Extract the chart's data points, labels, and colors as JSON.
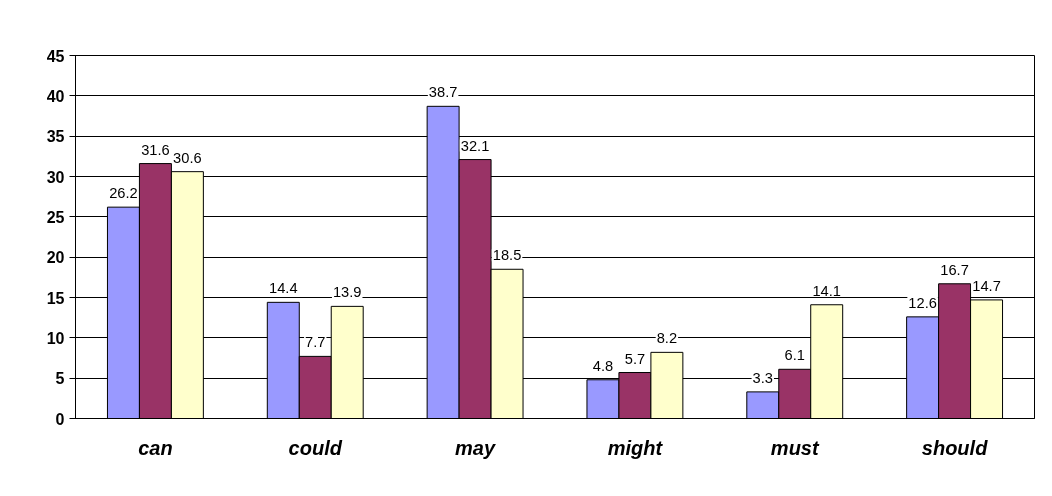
{
  "chart_data": {
    "type": "bar",
    "categories": [
      "can",
      "could",
      "may",
      "might",
      "must",
      "should"
    ],
    "series": [
      {
        "color": "#9999ff",
        "values": [
          26.2,
          14.4,
          38.7,
          4.8,
          3.3,
          12.6
        ]
      },
      {
        "color": "#993366",
        "values": [
          31.6,
          7.7,
          32.1,
          5.7,
          6.1,
          16.7
        ]
      },
      {
        "color": "#ffffcc",
        "values": [
          30.6,
          13.9,
          18.5,
          8.2,
          14.1,
          14.7
        ]
      }
    ],
    "ylim": [
      0,
      45
    ],
    "yticks": [
      0,
      5,
      10,
      15,
      20,
      25,
      30,
      35,
      40,
      45
    ],
    "grid": "y",
    "data_labels": true
  }
}
